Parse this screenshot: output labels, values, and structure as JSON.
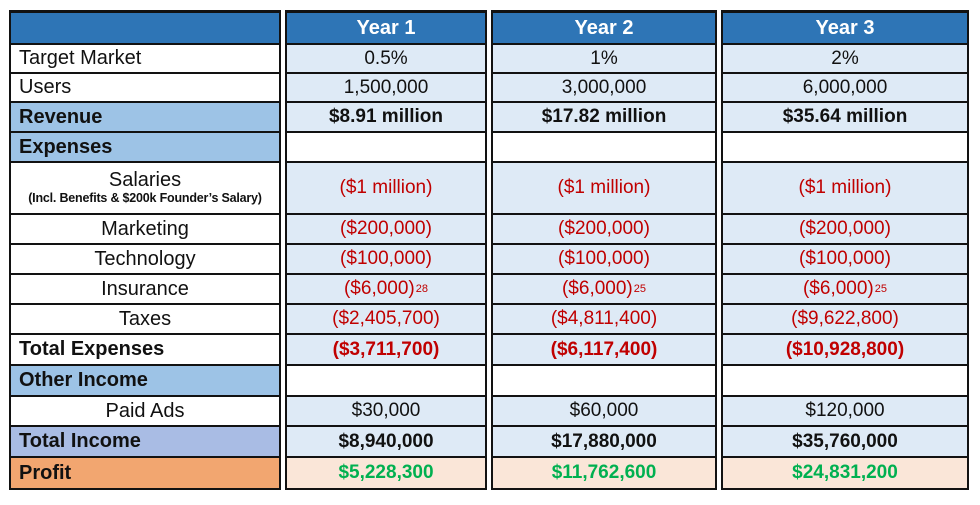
{
  "title": "Financial projections table",
  "colors": {
    "header_blue": "#2E75B6",
    "light_blue_cell": "#DEEAF6",
    "section_label_blue": "#9DC3E6",
    "total_income_label_blue": "#A9BCE4",
    "profit_label_orange": "#F2A670",
    "profit_value_peach": "#FAE6D8",
    "negative_red": "#C00000",
    "profit_green": "#00B050",
    "border_black": "#121212",
    "header_text_white": "#FFFFFF"
  },
  "table": {
    "header": {
      "blank": "",
      "cols": [
        "Year 1",
        "Year 2",
        "Year 3"
      ]
    },
    "rows": [
      {
        "id": "target-market",
        "label": "Target Market",
        "label_style": "name",
        "value_style": "data",
        "cells": [
          "0.5%",
          "1%",
          "2%"
        ]
      },
      {
        "id": "users",
        "label": "Users",
        "label_style": "name",
        "value_style": "data",
        "cells": [
          "1,500,000",
          "3,000,000",
          "6,000,000"
        ]
      },
      {
        "id": "revenue",
        "label": "Revenue",
        "label_style": "section",
        "value_style": "data-bold",
        "cells": [
          "$8.91 million",
          "$17.82 million",
          "$35.64 million"
        ]
      },
      {
        "id": "expenses",
        "label": "Expenses",
        "label_style": "section",
        "value_style": "empty",
        "cells": [
          "",
          "",
          ""
        ]
      },
      {
        "id": "salaries",
        "label": "Salaries",
        "sublabel": "(Incl. Benefits & $200k Founder’s Salary)",
        "label_style": "item-sub",
        "value_style": "negative",
        "cells": [
          "($1 million)",
          "($1 million)",
          "($1 million)"
        ]
      },
      {
        "id": "marketing",
        "label": "Marketing",
        "label_style": "item",
        "value_style": "negative",
        "cells": [
          "($200,000)",
          "($200,000)",
          "($200,000)"
        ]
      },
      {
        "id": "technology",
        "label": "Technology",
        "label_style": "item",
        "value_style": "negative",
        "cells": [
          "($100,000)",
          "($100,000)",
          "($100,000)"
        ]
      },
      {
        "id": "insurance",
        "label": "Insurance",
        "label_style": "item",
        "value_style": "negative",
        "cells": [
          {
            "text": "($6,000)",
            "sup": "28"
          },
          {
            "text": "($6,000)",
            "sup": "25"
          },
          {
            "text": "($6,000)",
            "sup": "25"
          }
        ]
      },
      {
        "id": "taxes",
        "label": "Taxes",
        "label_style": "item",
        "value_style": "negative",
        "cells": [
          "($2,405,700)",
          "($4,811,400)",
          "($9,622,800)"
        ]
      },
      {
        "id": "total-expenses",
        "label": "Total Expenses",
        "label_style": "total",
        "value_style": "negative-bold",
        "cells": [
          "($3,711,700)",
          "($6,117,400)",
          "($10,928,800)"
        ]
      },
      {
        "id": "other-income",
        "label": "Other Income",
        "label_style": "section",
        "value_style": "empty",
        "cells": [
          "",
          "",
          ""
        ]
      },
      {
        "id": "paid-ads",
        "label": "Paid Ads",
        "label_style": "item",
        "value_style": "data",
        "cells": [
          "$30,000",
          "$60,000",
          "$120,000"
        ]
      },
      {
        "id": "total-income",
        "label": "Total Income",
        "label_style": "total-income",
        "value_style": "data-bold",
        "cells": [
          "$8,940,000",
          "$17,880,000",
          "$35,760,000"
        ]
      },
      {
        "id": "profit",
        "label": "Profit",
        "label_style": "profit",
        "value_style": "profit",
        "cells": [
          "$5,228,300",
          "$11,762,600",
          "$24,831,200"
        ]
      }
    ]
  }
}
